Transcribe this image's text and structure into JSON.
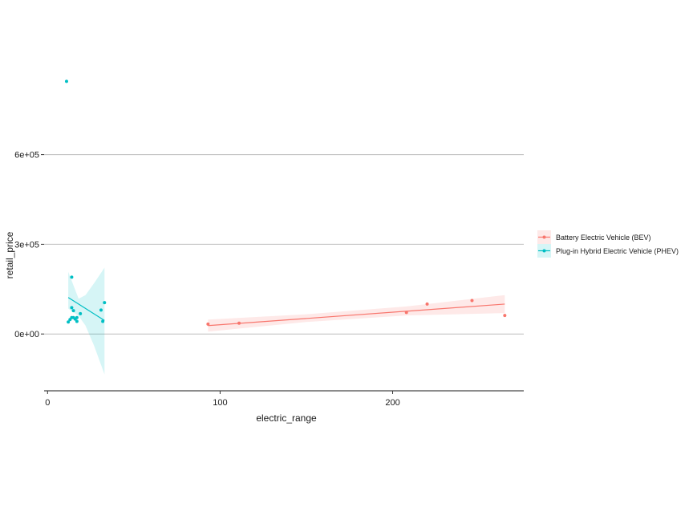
{
  "chart_data": {
    "type": "scatter",
    "title": "",
    "xlabel": "electric_range",
    "ylabel": "retail_price",
    "xlim": [
      -2,
      276
    ],
    "ylim": [
      -190000,
      870000
    ],
    "x_ticks": [
      0,
      100,
      200
    ],
    "x_tick_labels": [
      "0",
      "100",
      "200"
    ],
    "y_ticks": [
      0,
      300000,
      600000
    ],
    "y_tick_labels": [
      "0e+00",
      "3e+05",
      "6e+05"
    ],
    "grid": "horizontal major",
    "legend": "right",
    "series": [
      {
        "name": "Battery Electric Vehicle (BEV)",
        "color": "#F8766D",
        "points": [
          [
            93,
            33000
          ],
          [
            111,
            36000
          ],
          [
            208,
            72000
          ],
          [
            220,
            100000
          ],
          [
            246,
            112000
          ],
          [
            265,
            62000
          ]
        ],
        "fit": {
          "x": [
            93,
            265
          ],
          "y": [
            28000,
            100000
          ]
        },
        "band": {
          "x": [
            93,
            150,
            208,
            265
          ],
          "lower": [
            8000,
            40000,
            62000,
            70000
          ],
          "upper": [
            48000,
            66000,
            92000,
            130000
          ]
        }
      },
      {
        "name": "Plug-in Hybrid Electric Vehicle (PHEV)",
        "color": "#00BFC4",
        "points": [
          [
            11,
            845000
          ],
          [
            12,
            40000
          ],
          [
            13,
            48000
          ],
          [
            14,
            55000
          ],
          [
            14,
            88000
          ],
          [
            14,
            190000
          ],
          [
            15,
            55000
          ],
          [
            15,
            78000
          ],
          [
            16,
            50000
          ],
          [
            17,
            55000
          ],
          [
            17,
            42000
          ],
          [
            19,
            68000
          ],
          [
            31,
            80000
          ],
          [
            32,
            42000
          ],
          [
            33,
            105000
          ]
        ],
        "fit": {
          "x": [
            12,
            33
          ],
          "y": [
            122000,
            45000
          ]
        },
        "band": {
          "x": [
            12,
            18,
            22,
            27,
            33
          ],
          "lower": [
            85000,
            60000,
            28000,
            -40000,
            -135000
          ],
          "upper": [
            208000,
            118000,
            130000,
            170000,
            222000
          ]
        }
      }
    ]
  }
}
